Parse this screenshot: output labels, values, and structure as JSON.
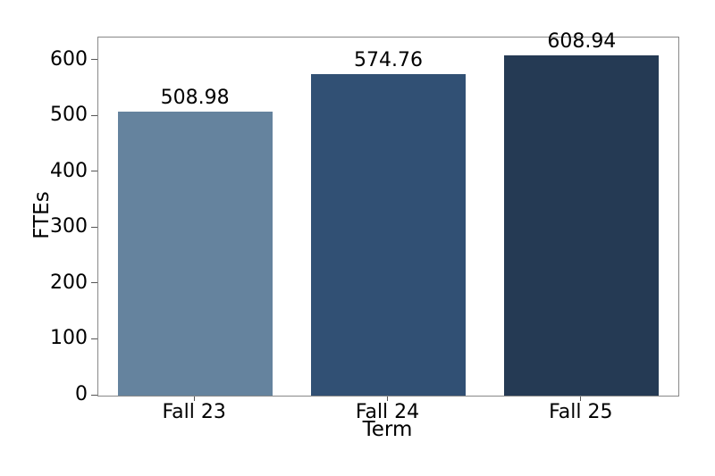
{
  "chart_data": {
    "type": "bar",
    "title": "",
    "categories": [
      "Fall 23",
      "Fall 24",
      "Fall 25"
    ],
    "values": [
      508.98,
      574.76,
      608.94
    ],
    "value_labels": [
      "508.98",
      "574.76",
      "608.94"
    ],
    "bar_colors": [
      "#65839E",
      "#315074",
      "#253A54"
    ],
    "xlabel": "Term",
    "ylabel": "FTEs",
    "yticks": [
      0,
      100,
      200,
      300,
      400,
      500,
      600
    ],
    "ylim": [
      0,
      641
    ],
    "bar_width_frac": 0.8,
    "grid": false,
    "legend": "none",
    "frame": "box"
  },
  "colors": {
    "background": "#ffffff",
    "spine": "#888888",
    "tick": "#555555",
    "text": "#000000"
  }
}
